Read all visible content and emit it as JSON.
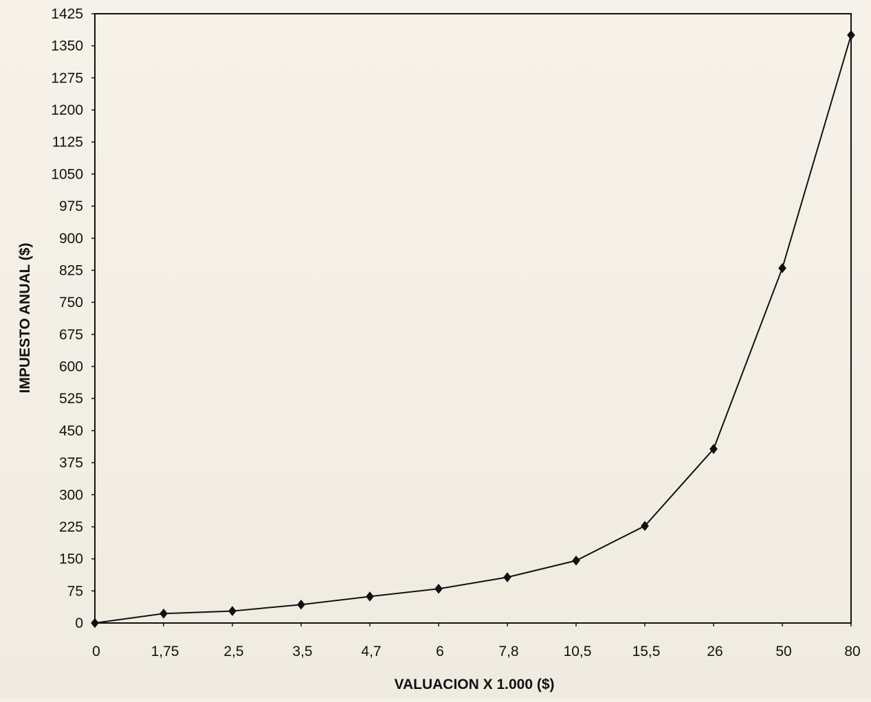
{
  "chart_data": {
    "type": "line",
    "title": "",
    "xlabel": "VALUACION X 1.000 ($)",
    "ylabel": "IMPUESTO ANUAL ($)",
    "categories": [
      "0",
      "1,75",
      "2,5",
      "3,5",
      "4,7",
      "6",
      "7,8",
      "10,5",
      "15,5",
      "26",
      "50",
      "80"
    ],
    "series": [
      {
        "values": [
          0,
          22,
          28,
          43,
          62,
          80,
          107,
          146,
          227,
          407,
          830,
          1375
        ],
        "marker": "diamond",
        "color": "#111111"
      }
    ],
    "ylim": [
      0,
      1425
    ],
    "yticks": [
      "0",
      "75",
      "150",
      "225",
      "300",
      "375",
      "450",
      "525",
      "600",
      "675",
      "750",
      "825",
      "900",
      "975",
      "1050",
      "1125",
      "1200",
      "1275",
      "1350",
      "1425"
    ],
    "grid": false,
    "legend": "none"
  }
}
